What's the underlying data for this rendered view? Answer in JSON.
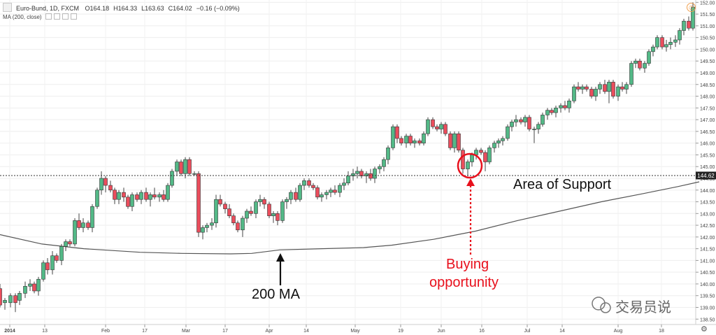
{
  "header": {
    "symbol": "Euro-Bund, 1D, FXCM",
    "open": "O164.18",
    "high": "H164.33",
    "low": "L163.63",
    "close": "C164.02",
    "change": "−0.16 (−0.09%)"
  },
  "indicator": {
    "label": "MA (200, close)"
  },
  "price_tag": "144.62",
  "annotations": {
    "support": "Area of Support",
    "ma": "200 MA",
    "buy_line1": "Buying",
    "buy_line2": "opportunity"
  },
  "watermark": "交易员说",
  "colors": {
    "up": "#53b987",
    "down": "#eb4d5c",
    "annotation_red": "#e8101c",
    "ma_line": "#555555"
  },
  "chart_data": {
    "type": "candlestick",
    "title": "Euro-Bund, 1D, FXCM",
    "x_tick_labels": [
      "2014",
      "13",
      "Feb",
      "17",
      "Mar",
      "17",
      "Apr",
      "14",
      "May",
      "19",
      "Jun",
      "16",
      "Jul",
      "14",
      "Aug",
      "18"
    ],
    "y_ticks": [
      "152.00",
      "151.50",
      "151.00",
      "150.50",
      "150.00",
      "149.50",
      "149.00",
      "148.50",
      "148.00",
      "147.50",
      "147.00",
      "146.50",
      "146.00",
      "145.50",
      "145.00",
      "144.50",
      "144.00",
      "143.50",
      "143.00",
      "142.50",
      "142.00",
      "141.50",
      "141.00",
      "140.50",
      "140.00",
      "139.50",
      "139.00",
      "138.50"
    ],
    "ylim": [
      138.27,
      152.1
    ],
    "support_level": 144.62,
    "ma_period": 200,
    "moving_average": [
      [
        0,
        142.1
      ],
      [
        60,
        141.7
      ],
      [
        120,
        141.5
      ],
      [
        200,
        141.35
      ],
      [
        260,
        141.3
      ],
      [
        330,
        141.28
      ],
      [
        360,
        141.3
      ],
      [
        400,
        141.45
      ],
      [
        460,
        141.5
      ],
      [
        520,
        141.55
      ],
      [
        560,
        141.65
      ],
      [
        620,
        141.9
      ],
      [
        680,
        142.25
      ],
      [
        740,
        142.7
      ],
      [
        800,
        143.1
      ],
      [
        860,
        143.5
      ],
      [
        920,
        143.85
      ],
      [
        970,
        144.15
      ],
      [
        1000,
        144.35
      ]
    ],
    "candles": [
      [
        0,
        139.8,
        140.0,
        139.0,
        139.1
      ],
      [
        7,
        139.2,
        139.4,
        138.9,
        139.3
      ],
      [
        15,
        139.2,
        139.6,
        139.0,
        139.5
      ],
      [
        22,
        139.5,
        139.6,
        138.8,
        139.2
      ],
      [
        28,
        139.3,
        139.7,
        139.1,
        139.6
      ],
      [
        36,
        139.6,
        140.1,
        139.4,
        139.9
      ],
      [
        43,
        139.9,
        140.2,
        139.7,
        140.0
      ],
      [
        49,
        140.0,
        140.1,
        139.6,
        139.7
      ],
      [
        55,
        139.7,
        140.3,
        139.5,
        140.2
      ],
      [
        62,
        140.2,
        141.0,
        140.1,
        140.9
      ],
      [
        68,
        140.9,
        141.1,
        140.4,
        140.6
      ],
      [
        75,
        140.6,
        141.4,
        140.4,
        141.2
      ],
      [
        81,
        141.2,
        141.3,
        140.9,
        141.0
      ],
      [
        88,
        141.0,
        141.7,
        140.8,
        141.6
      ],
      [
        94,
        141.6,
        141.9,
        141.4,
        141.8
      ],
      [
        100,
        141.8,
        141.9,
        141.6,
        141.7
      ],
      [
        107,
        141.7,
        142.8,
        141.6,
        142.7
      ],
      [
        113,
        142.7,
        143.0,
        142.3,
        142.4
      ],
      [
        119,
        142.4,
        142.8,
        142.2,
        142.6
      ],
      [
        126,
        142.6,
        142.7,
        142.3,
        142.4
      ],
      [
        132,
        142.4,
        143.4,
        142.2,
        143.3
      ],
      [
        139,
        143.3,
        144.1,
        143.2,
        144.0
      ],
      [
        145,
        144.0,
        144.8,
        143.8,
        144.5
      ],
      [
        151,
        144.5,
        144.6,
        143.9,
        144.2
      ],
      [
        158,
        144.2,
        144.4,
        143.9,
        144.0
      ],
      [
        164,
        144.0,
        144.1,
        143.4,
        143.6
      ],
      [
        170,
        143.6,
        144.0,
        143.4,
        143.9
      ],
      [
        177,
        143.9,
        144.1,
        143.5,
        143.7
      ],
      [
        183,
        143.7,
        143.8,
        143.2,
        143.3
      ],
      [
        189,
        143.3,
        143.9,
        143.1,
        143.8
      ],
      [
        196,
        143.8,
        143.9,
        143.5,
        143.6
      ],
      [
        202,
        143.6,
        144.0,
        143.4,
        143.9
      ],
      [
        209,
        143.9,
        144.1,
        143.5,
        143.6
      ],
      [
        215,
        143.6,
        143.9,
        143.3,
        143.8
      ],
      [
        221,
        143.8,
        144.1,
        143.6,
        143.7
      ],
      [
        228,
        143.7,
        143.9,
        143.5,
        143.8
      ],
      [
        234,
        143.8,
        144.0,
        143.5,
        143.6
      ],
      [
        240,
        143.6,
        144.3,
        143.5,
        144.2
      ],
      [
        246,
        144.2,
        144.9,
        144.1,
        144.8
      ],
      [
        253,
        144.8,
        145.3,
        144.6,
        145.2
      ],
      [
        259,
        145.2,
        145.3,
        144.6,
        144.7
      ],
      [
        265,
        144.7,
        145.4,
        144.5,
        145.3
      ],
      [
        271,
        145.3,
        145.4,
        144.6,
        144.7
      ],
      [
        278,
        144.7,
        144.8,
        144.6,
        144.7
      ],
      [
        284,
        144.7,
        144.8,
        142.0,
        142.2
      ],
      [
        290,
        142.2,
        142.5,
        141.9,
        142.4
      ],
      [
        296,
        142.4,
        142.6,
        142.2,
        142.5
      ],
      [
        303,
        142.5,
        142.8,
        142.3,
        142.6
      ],
      [
        309,
        142.6,
        143.8,
        142.4,
        143.6
      ],
      [
        315,
        143.6,
        143.8,
        143.3,
        143.4
      ],
      [
        322,
        143.4,
        143.5,
        143.0,
        143.2
      ],
      [
        328,
        143.2,
        143.4,
        142.8,
        142.9
      ],
      [
        334,
        142.9,
        143.0,
        142.5,
        142.6
      ],
      [
        340,
        142.6,
        142.7,
        142.2,
        142.3
      ],
      [
        347,
        142.3,
        142.9,
        142.0,
        142.8
      ],
      [
        353,
        142.8,
        143.2,
        142.6,
        143.1
      ],
      [
        359,
        143.1,
        143.3,
        142.9,
        143.0
      ],
      [
        366,
        143.0,
        143.6,
        142.8,
        143.5
      ],
      [
        372,
        143.5,
        143.8,
        143.3,
        143.6
      ],
      [
        378,
        143.6,
        143.7,
        143.2,
        143.4
      ],
      [
        385,
        143.4,
        143.5,
        142.8,
        142.9
      ],
      [
        391,
        142.9,
        143.1,
        142.6,
        143.0
      ],
      [
        397,
        143.0,
        143.1,
        142.5,
        142.7
      ],
      [
        404,
        142.7,
        143.6,
        142.6,
        143.5
      ],
      [
        410,
        143.5,
        143.7,
        143.2,
        143.6
      ],
      [
        416,
        143.6,
        144.0,
        143.4,
        143.9
      ],
      [
        423,
        143.9,
        144.1,
        143.5,
        143.6
      ],
      [
        429,
        143.6,
        144.3,
        143.5,
        144.2
      ],
      [
        435,
        144.2,
        144.5,
        144.0,
        144.4
      ],
      [
        442,
        144.4,
        144.5,
        144.1,
        144.2
      ],
      [
        448,
        144.2,
        144.3,
        144.0,
        144.1
      ],
      [
        454,
        144.1,
        144.2,
        143.6,
        143.7
      ],
      [
        460,
        143.7,
        143.9,
        143.5,
        143.8
      ],
      [
        467,
        143.8,
        144.0,
        143.6,
        143.9
      ],
      [
        473,
        143.9,
        144.1,
        143.7,
        144.0
      ],
      [
        479,
        144.0,
        144.2,
        143.8,
        143.9
      ],
      [
        486,
        143.9,
        144.3,
        143.7,
        144.2
      ],
      [
        492,
        144.2,
        144.5,
        144.0,
        144.3
      ],
      [
        498,
        144.3,
        144.8,
        144.2,
        144.6
      ],
      [
        505,
        144.6,
        144.9,
        144.4,
        144.7
      ],
      [
        511,
        144.7,
        145.0,
        144.5,
        144.8
      ],
      [
        517,
        144.8,
        144.9,
        144.5,
        144.6
      ],
      [
        524,
        144.6,
        144.8,
        144.3,
        144.7
      ],
      [
        530,
        144.7,
        144.9,
        144.4,
        144.5
      ],
      [
        536,
        144.5,
        145.0,
        144.3,
        144.9
      ],
      [
        543,
        144.9,
        145.1,
        144.7,
        145.0
      ],
      [
        549,
        145.0,
        145.4,
        144.8,
        145.3
      ],
      [
        555,
        145.3,
        145.9,
        145.1,
        145.8
      ],
      [
        562,
        145.8,
        146.8,
        145.7,
        146.7
      ],
      [
        568,
        146.7,
        146.8,
        146.0,
        146.2
      ],
      [
        574,
        146.2,
        146.3,
        145.9,
        146.0
      ],
      [
        581,
        146.0,
        146.4,
        145.8,
        146.3
      ],
      [
        587,
        146.3,
        146.4,
        145.9,
        146.0
      ],
      [
        593,
        146.0,
        146.2,
        145.8,
        146.1
      ],
      [
        600,
        146.1,
        146.2,
        145.9,
        146.0
      ],
      [
        606,
        146.0,
        146.5,
        145.9,
        146.4
      ],
      [
        612,
        146.4,
        147.1,
        146.3,
        147.0
      ],
      [
        619,
        147.0,
        147.1,
        146.6,
        146.7
      ],
      [
        625,
        146.7,
        146.8,
        146.5,
        146.6
      ],
      [
        631,
        146.6,
        146.9,
        146.4,
        146.8
      ],
      [
        637,
        146.8,
        146.9,
        146.3,
        146.4
      ],
      [
        644,
        146.4,
        146.5,
        145.7,
        145.8
      ],
      [
        650,
        145.8,
        146.5,
        145.6,
        146.4
      ],
      [
        656,
        146.4,
        146.5,
        145.6,
        145.7
      ],
      [
        662,
        145.7,
        145.8,
        144.7,
        144.9
      ],
      [
        669,
        144.9,
        145.3,
        144.6,
        145.2
      ],
      [
        675,
        145.2,
        145.6,
        145.0,
        145.5
      ],
      [
        681,
        145.5,
        145.8,
        145.3,
        145.7
      ],
      [
        688,
        145.7,
        145.8,
        145.5,
        145.6
      ],
      [
        694,
        145.6,
        145.7,
        144.8,
        145.2
      ],
      [
        700,
        145.2,
        145.9,
        145.1,
        145.8
      ],
      [
        707,
        145.8,
        146.1,
        145.6,
        146.0
      ],
      [
        713,
        146.0,
        146.2,
        145.8,
        146.1
      ],
      [
        719,
        146.1,
        146.3,
        145.9,
        146.2
      ],
      [
        726,
        146.2,
        146.8,
        146.1,
        146.7
      ],
      [
        732,
        146.7,
        147.0,
        146.5,
        146.9
      ],
      [
        738,
        146.9,
        147.2,
        146.7,
        147.0
      ],
      [
        745,
        147.0,
        147.1,
        146.8,
        146.9
      ],
      [
        751,
        146.9,
        147.2,
        146.7,
        147.1
      ],
      [
        757,
        147.1,
        147.2,
        146.5,
        146.6
      ],
      [
        764,
        146.6,
        146.7,
        146.0,
        146.6
      ],
      [
        770,
        146.6,
        146.9,
        146.4,
        146.8
      ],
      [
        776,
        146.8,
        147.3,
        146.7,
        147.2
      ],
      [
        783,
        147.2,
        147.5,
        147.0,
        147.4
      ],
      [
        789,
        147.4,
        147.5,
        147.2,
        147.3
      ],
      [
        795,
        147.3,
        147.6,
        147.1,
        147.5
      ],
      [
        802,
        147.5,
        147.7,
        147.3,
        147.6
      ],
      [
        808,
        147.6,
        147.8,
        147.4,
        147.5
      ],
      [
        814,
        147.5,
        147.9,
        147.3,
        147.8
      ],
      [
        821,
        147.8,
        148.5,
        147.7,
        148.4
      ],
      [
        827,
        148.4,
        148.6,
        148.2,
        148.3
      ],
      [
        833,
        148.3,
        148.5,
        148.1,
        148.4
      ],
      [
        839,
        148.4,
        148.5,
        148.2,
        148.3
      ],
      [
        846,
        148.3,
        148.4,
        147.9,
        148.0
      ],
      [
        852,
        148.0,
        148.4,
        147.8,
        148.3
      ],
      [
        858,
        148.3,
        148.6,
        148.1,
        148.5
      ],
      [
        865,
        148.5,
        148.7,
        148.1,
        148.2
      ],
      [
        871,
        148.2,
        148.7,
        147.7,
        148.6
      ],
      [
        877,
        148.6,
        148.7,
        147.9,
        148.0
      ],
      [
        884,
        148.0,
        148.5,
        147.8,
        148.4
      ],
      [
        890,
        148.4,
        148.6,
        148.2,
        148.3
      ],
      [
        896,
        148.3,
        148.6,
        148.1,
        148.5
      ],
      [
        903,
        148.5,
        149.5,
        148.4,
        149.4
      ],
      [
        909,
        149.4,
        149.6,
        149.2,
        149.5
      ],
      [
        915,
        149.5,
        149.6,
        149.1,
        149.2
      ],
      [
        922,
        149.2,
        149.5,
        149.0,
        149.4
      ],
      [
        928,
        149.4,
        150.0,
        149.3,
        149.9
      ],
      [
        934,
        149.9,
        150.2,
        149.7,
        150.1
      ],
      [
        940,
        150.1,
        150.6,
        150.0,
        150.5
      ],
      [
        947,
        150.5,
        150.6,
        150.0,
        150.1
      ],
      [
        953,
        150.1,
        150.4,
        149.9,
        150.2
      ],
      [
        959,
        150.2,
        150.5,
        150.0,
        150.3
      ],
      [
        966,
        150.3,
        150.6,
        150.1,
        150.4
      ],
      [
        972,
        150.4,
        150.9,
        150.2,
        150.8
      ],
      [
        978,
        150.8,
        151.3,
        150.6,
        151.2
      ],
      [
        985,
        151.2,
        151.4,
        150.8,
        150.9
      ],
      [
        991,
        150.9,
        152.0,
        150.8,
        151.8
      ]
    ]
  }
}
